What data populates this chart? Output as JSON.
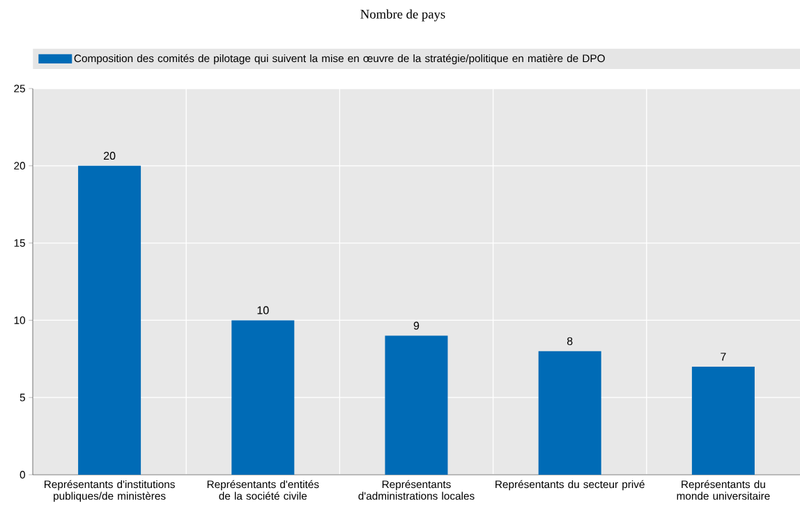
{
  "chart_data": {
    "type": "bar",
    "title": "Nombre de pays",
    "categories": [
      "Représentants d'institutions publiques/de ministères",
      "Représentants d'entités de la société civile",
      "Représentants d'administrations locales",
      "Représentants du secteur privé",
      "Représentants du monde universitaire"
    ],
    "series": [
      {
        "name": "Composition des comités de pilotage qui suivent la mise en œuvre de la stratégie/politique en matière de DPO",
        "color": "#006bb6",
        "values": [
          20,
          10,
          9,
          8,
          7
        ]
      }
    ],
    "ylim": [
      0,
      25
    ],
    "yticks": [
      0,
      5,
      10,
      15,
      20,
      25
    ],
    "grid": true,
    "legend": "top",
    "data_labels": true
  }
}
